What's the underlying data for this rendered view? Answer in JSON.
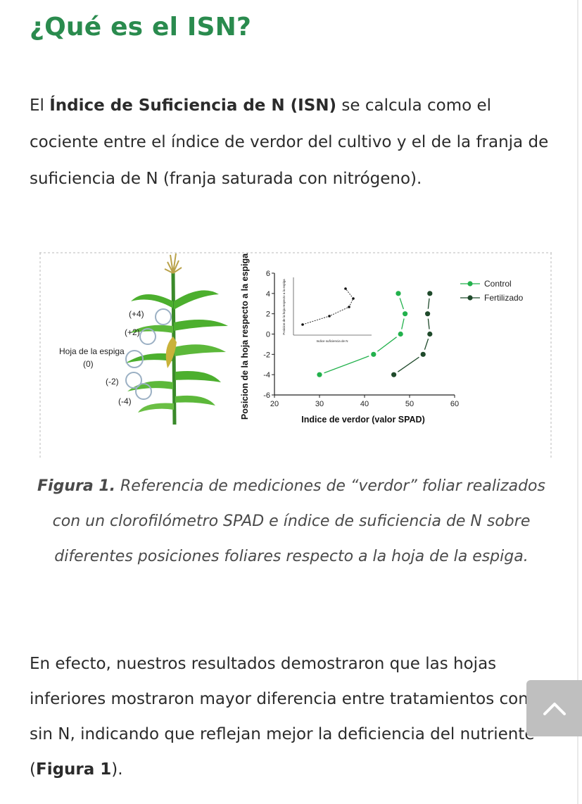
{
  "heading": "¿Qué es el ISN?",
  "intro": {
    "prefix": "El ",
    "bold": "Índice de Suficiencia de N (ISN)",
    "text": " se calcula como el cociente entre el índice de verdor del cultivo y el de la franja de suficiencia de N (franja saturada con nitrógeno)."
  },
  "figure": {
    "plant_labels": {
      "pos4": "(+4)",
      "pos2": "(+2)",
      "ear_leaf": "Hoja de la espiga",
      "zero": "(0)",
      "neg2": "(-2)",
      "neg4": "(-4)"
    },
    "inset": {
      "xlabel": "Indice suficiencia de N",
      "ylabel": "Posicion de la hoja respecto a la espiga"
    }
  },
  "chart_data": {
    "type": "line",
    "xlabel": "Indice de verdor (valor SPAD)",
    "ylabel": "Posicion de la hoja respecto a la espiga",
    "xlim": [
      20,
      60
    ],
    "ylim": [
      -6,
      6
    ],
    "xticks": [
      "20",
      "30",
      "40",
      "50",
      "60"
    ],
    "yticks": [
      "-6",
      "-4",
      "-2",
      "0",
      "2",
      "4",
      "6"
    ],
    "legend_position": "top-right",
    "series": [
      {
        "name": "Control",
        "color": "#22b14c",
        "points": [
          [
            30,
            -4
          ],
          [
            42,
            -2
          ],
          [
            48,
            0
          ],
          [
            49,
            2
          ],
          [
            47.5,
            4
          ]
        ]
      },
      {
        "name": "Fertilizado",
        "color": "#1f4a2b",
        "points": [
          [
            46.5,
            -4
          ],
          [
            53,
            -2
          ],
          [
            54.5,
            0
          ],
          [
            54,
            2
          ],
          [
            54.5,
            4
          ]
        ]
      }
    ]
  },
  "caption": {
    "bold": "Figura 1.",
    "text": " Referencia de mediciones de “verdor” foliar realizados con un clorofilómetro SPAD e índice de suficiencia de N sobre diferentes posiciones foliares respecto a la hoja de la espiga."
  },
  "body2": {
    "text": "En efecto, nuestros resultados demostraron que las hojas inferiores mostraron mayor diferencia entre tratamientos con y sin N, indicando que reflejan mejor la deficiencia del nutriente (",
    "bold": "Figura 1",
    "suffix": ")."
  },
  "scroll_top": {
    "icon": "chevron-up-icon"
  }
}
